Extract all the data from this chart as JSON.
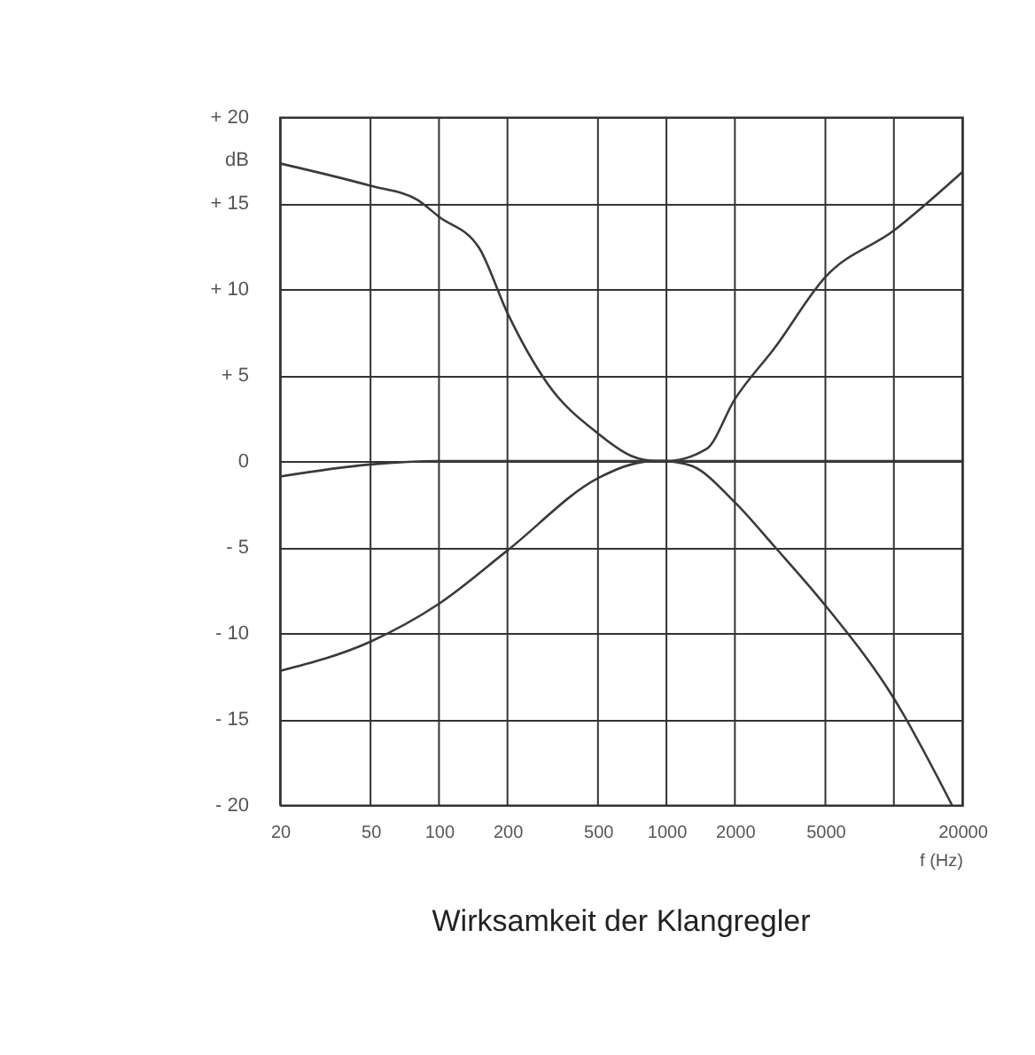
{
  "chart_data": {
    "type": "line",
    "title": "Wirksamkeit der Klangregler",
    "xlabel": "f (Hz)",
    "ylabel": "dB",
    "log": "x",
    "grid": true,
    "legend": false,
    "marker": "none",
    "line_style": "solid",
    "xlim": [
      20,
      20000
    ],
    "xticks": [
      20,
      50,
      100,
      200,
      500,
      1000,
      2000,
      5000,
      {
        "value": 10000,
        "label": null
      },
      20000
    ],
    "ylim": [
      -20,
      20
    ],
    "yticks": [
      {
        "value": 20,
        "label": "+ 20"
      },
      {
        "value": 15,
        "label": "+ 15"
      },
      {
        "value": 10,
        "label": "+ 10"
      },
      {
        "value": 5,
        "label": "+  5"
      },
      0,
      {
        "value": -5,
        "label": "-  5"
      },
      {
        "value": -10,
        "label": "- 10"
      },
      {
        "value": -15,
        "label": "- 15"
      },
      {
        "value": -20,
        "label": "- 20"
      }
    ],
    "series": [
      {
        "color": "#3a3a3a",
        "x": [
          20,
          50,
          80,
          100,
          150,
          200,
          300,
          500,
          700,
          900,
          1000
        ],
        "values": [
          17.3,
          16.0,
          15.2,
          14.2,
          12.4,
          8.6,
          4.5,
          1.6,
          0.3,
          0,
          0
        ]
      },
      {
        "color": "#3a3a3a",
        "x": [
          20,
          50,
          100,
          200,
          500,
          1000,
          2000,
          5000,
          10000,
          20000
        ],
        "values": [
          -0.9,
          -0.2,
          0,
          0,
          0,
          0,
          0,
          0,
          0,
          0
        ]
      },
      {
        "color": "#3a3a3a",
        "x": [
          800,
          1000,
          1500,
          2000,
          3000,
          5000,
          10000,
          20000
        ],
        "values": [
          0,
          0,
          0.7,
          3.6,
          6.6,
          10.7,
          13.4,
          16.8
        ]
      },
      {
        "color": "#3a3a3a",
        "x": [
          20,
          50,
          100,
          200,
          500,
          700,
          900,
          1000
        ],
        "values": [
          -12.2,
          -10.5,
          -8.3,
          -5.2,
          -1.0,
          -0.2,
          0,
          0
        ]
      },
      {
        "color": "#3a3a3a",
        "x": [
          1000,
          1300,
          2000,
          3000,
          5000,
          10000,
          18000
        ],
        "values": [
          0,
          -0.3,
          -2.4,
          -5.0,
          -8.4,
          -13.8,
          -20
        ]
      }
    ]
  }
}
